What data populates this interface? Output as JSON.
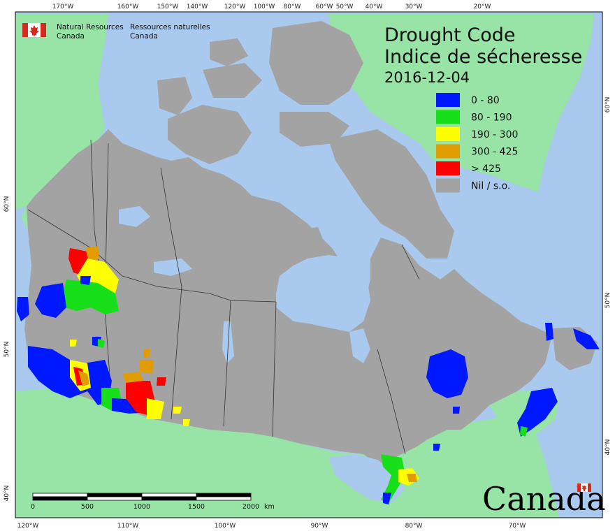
{
  "map": {
    "title_en": "Drought Code",
    "title_fr": "Indice de sécheresse",
    "date": "2016-12-04",
    "organization": {
      "en_line1": "Natural Resources",
      "en_line2": "Canada",
      "fr_line1": "Ressources naturelles",
      "fr_line2": "Canada"
    },
    "wordmark": "Canada",
    "legend": [
      {
        "label": "0 - 80",
        "color": "#0018ff"
      },
      {
        "label": "80 - 190",
        "color": "#17e01a"
      },
      {
        "label": "190 - 300",
        "color": "#ffff00"
      },
      {
        "label": "300 - 425",
        "color": "#e09c00"
      },
      {
        "label": "> 425",
        "color": "#ff0000"
      },
      {
        "label": "Nil / s.o.",
        "color": "#a3a3a3"
      }
    ],
    "top_longitudes": [
      "170°W",
      "160°W",
      "150°W",
      "140°W",
      "120°W",
      "100°W",
      "80°W",
      "60°W",
      "50°W",
      "40°W",
      "30°W",
      "20°W"
    ],
    "bottom_longitudes": [
      "120°W",
      "110°W",
      "100°W",
      "90°W",
      "80°W",
      "70°W"
    ],
    "left_latitudes": [
      "60°N",
      "50°N",
      "40°N"
    ],
    "right_latitudes": [
      "60°N",
      "50°N",
      "40°N"
    ],
    "scale_bar": {
      "ticks": [
        "0",
        "500",
        "1000",
        "1500",
        "2000"
      ],
      "unit": "km"
    },
    "colors": {
      "ocean": "#a9c9ef",
      "land_other": "#98e3a6",
      "canada_nil": "#a3a3a3",
      "lake": "#a9c9ef",
      "border": "#333333"
    }
  }
}
